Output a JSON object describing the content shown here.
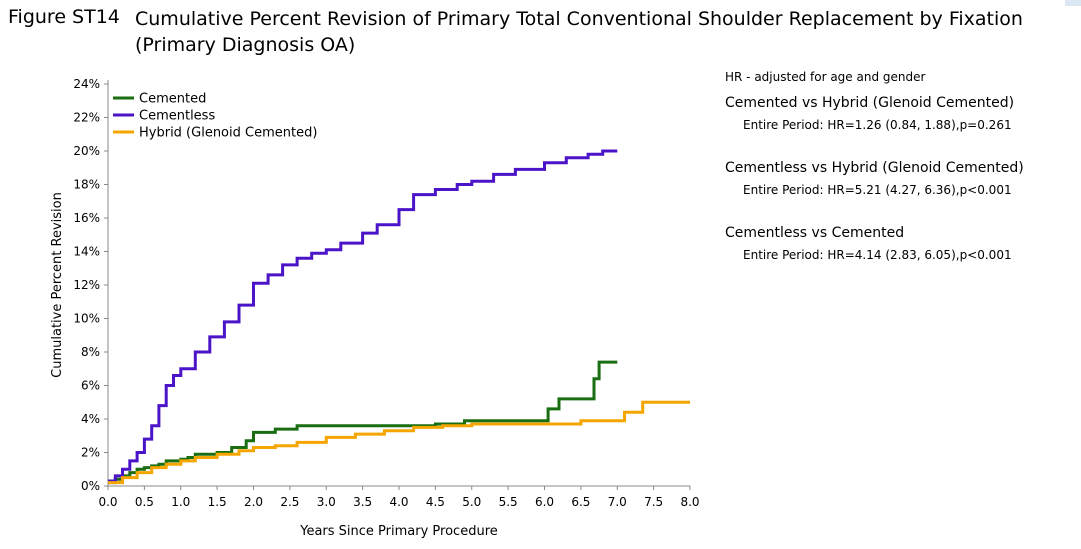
{
  "figure": {
    "label": "Figure ST14",
    "title": "Cumulative Percent Revision of Primary Total Conventional Shoulder Replacement by Fixation (Primary Diagnosis OA)"
  },
  "hr_panel": {
    "note": "HR - adjusted for age and gender",
    "comparisons": [
      {
        "title": "Cemented vs Hybrid (Glenoid Cemented)",
        "result": "Entire Period: HR=1.26 (0.84, 1.88),p=0.261"
      },
      {
        "title": "Cementless vs Hybrid (Glenoid Cemented)",
        "result": "Entire Period: HR=5.21 (4.27, 6.36),p<0.001"
      },
      {
        "title": "Cementless vs Cemented",
        "result": "Entire Period: HR=4.14 (2.83, 6.05),p<0.001"
      }
    ]
  },
  "chart_data": {
    "type": "line",
    "step": true,
    "title": "",
    "xlabel": "Years Since Primary Procedure",
    "ylabel": "Cumulative Percent Revision",
    "xlim": [
      0,
      8
    ],
    "ylim": [
      0,
      24
    ],
    "x_ticks": [
      "0.0",
      "0.5",
      "1.0",
      "1.5",
      "2.0",
      "2.5",
      "3.0",
      "3.5",
      "4.0",
      "4.5",
      "5.0",
      "5.5",
      "6.0",
      "6.5",
      "7.0",
      "7.5",
      "8.0"
    ],
    "y_ticks": [
      "0%",
      "2%",
      "4%",
      "6%",
      "8%",
      "10%",
      "12%",
      "14%",
      "16%",
      "18%",
      "20%",
      "22%",
      "24%"
    ],
    "grid": false,
    "legend_position": "top-left",
    "series": [
      {
        "name": "Cemented",
        "color": "#1a6e12",
        "x": [
          0,
          0.1,
          0.2,
          0.3,
          0.4,
          0.5,
          0.6,
          0.7,
          0.8,
          1.0,
          1.1,
          1.2,
          1.5,
          1.7,
          1.9,
          2.0,
          2.3,
          2.6,
          3.0,
          4.0,
          4.5,
          4.9,
          5.5,
          6.0,
          6.05,
          6.2,
          6.6,
          6.68,
          6.75,
          7.0
        ],
        "y": [
          0.2,
          0.4,
          0.6,
          0.8,
          1.0,
          1.1,
          1.2,
          1.3,
          1.5,
          1.6,
          1.7,
          1.9,
          2.0,
          2.3,
          2.7,
          3.2,
          3.4,
          3.6,
          3.6,
          3.6,
          3.7,
          3.9,
          3.9,
          3.9,
          4.6,
          5.2,
          5.2,
          6.4,
          7.4,
          7.4
        ]
      },
      {
        "name": "Cementless",
        "color": "#4b14c8",
        "x": [
          0,
          0.1,
          0.2,
          0.3,
          0.4,
          0.5,
          0.6,
          0.7,
          0.8,
          0.9,
          1.0,
          1.2,
          1.4,
          1.6,
          1.8,
          2.0,
          2.2,
          2.4,
          2.6,
          2.8,
          3.0,
          3.2,
          3.5,
          3.7,
          4.0,
          4.2,
          4.5,
          4.8,
          5.0,
          5.3,
          5.6,
          6.0,
          6.3,
          6.6,
          6.8,
          7.0
        ],
        "y": [
          0.3,
          0.6,
          1.0,
          1.5,
          2.0,
          2.8,
          3.6,
          4.8,
          6.0,
          6.6,
          7.0,
          8.0,
          8.9,
          9.8,
          10.8,
          12.1,
          12.6,
          13.2,
          13.6,
          13.9,
          14.1,
          14.5,
          15.1,
          15.6,
          16.5,
          17.4,
          17.7,
          18.0,
          18.2,
          18.6,
          18.9,
          19.3,
          19.6,
          19.8,
          20.0,
          20.0
        ]
      },
      {
        "name": "Hybrid (Glenoid Cemented)",
        "color": "#f5a500",
        "x": [
          0,
          0.2,
          0.4,
          0.6,
          0.8,
          1.0,
          1.2,
          1.5,
          1.8,
          2.0,
          2.3,
          2.6,
          3.0,
          3.4,
          3.8,
          4.2,
          4.6,
          5.0,
          5.5,
          6.0,
          6.5,
          7.0,
          7.1,
          7.35,
          7.5,
          8.0
        ],
        "y": [
          0.2,
          0.5,
          0.8,
          1.1,
          1.3,
          1.5,
          1.7,
          1.9,
          2.1,
          2.3,
          2.4,
          2.6,
          2.9,
          3.1,
          3.3,
          3.5,
          3.6,
          3.7,
          3.7,
          3.7,
          3.9,
          3.9,
          4.4,
          5.0,
          5.0,
          5.0
        ]
      }
    ]
  }
}
